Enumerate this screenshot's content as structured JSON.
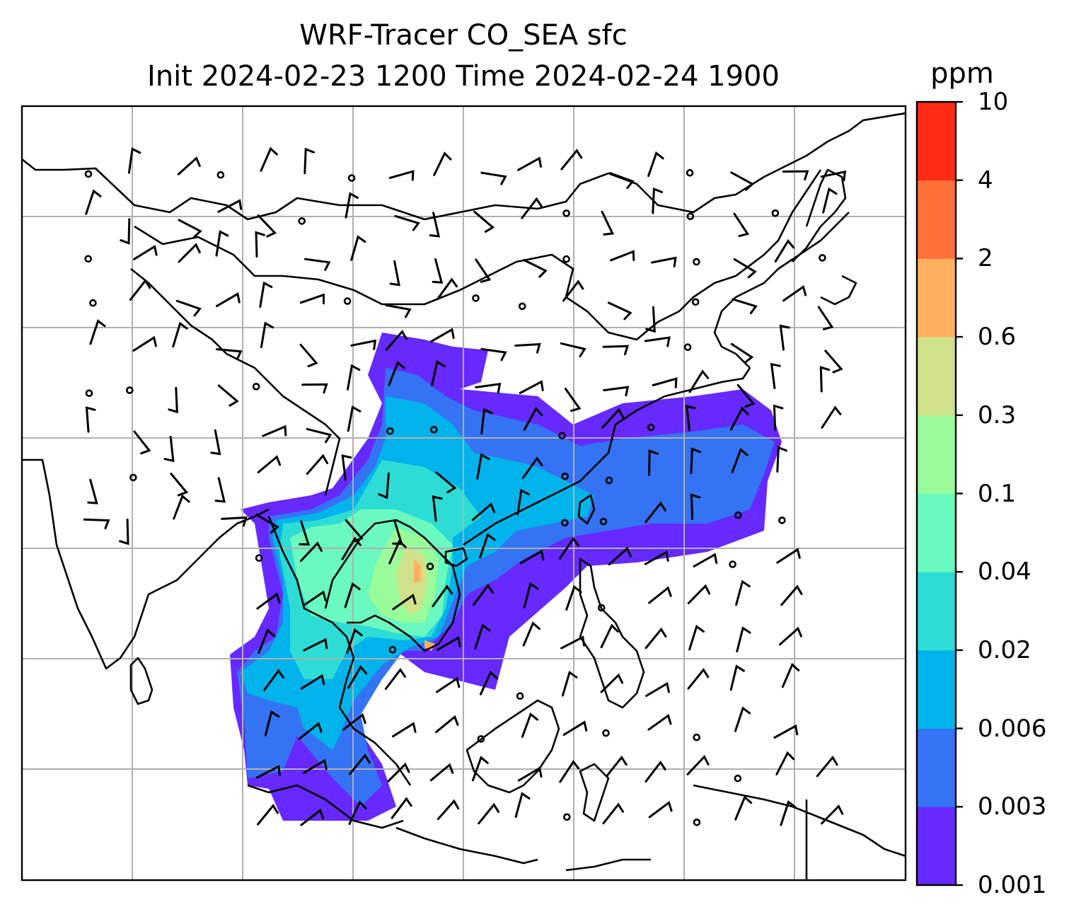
{
  "title": {
    "line1": "WRF-Tracer CO_SEA sfc",
    "line2": "Init 2024-02-23 1200 Time 2024-02-24 1900"
  },
  "colorbar": {
    "unit": "ppm",
    "levels": [
      "0.001",
      "0.003",
      "0.006",
      "0.02",
      "0.04",
      "0.1",
      "0.3",
      "0.6",
      "2",
      "4",
      "10"
    ],
    "colors": [
      "#6629ff",
      "#3473f4",
      "#00b3ea",
      "#2ddcd5",
      "#6af9be",
      "#99fb99",
      "#cfe189",
      "#ffb160",
      "#ff7139",
      "#ff2b15"
    ]
  },
  "map": {
    "gridlines": true,
    "coastline_color": "#000000",
    "grid_color": "#b0b0b0",
    "wind_barb_color": "#000000"
  }
}
